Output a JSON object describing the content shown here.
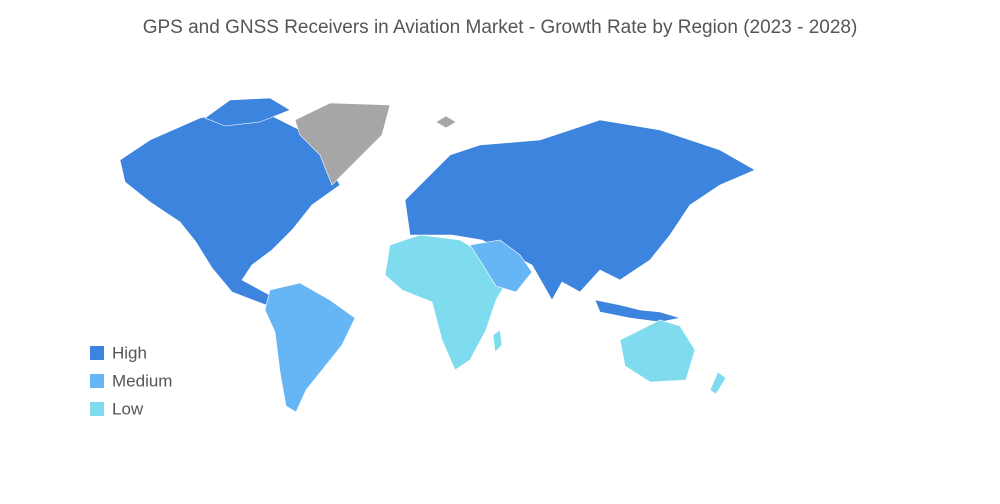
{
  "title": "GPS and GNSS Receivers in Aviation Market - Growth Rate by Region (2023 - 2028)",
  "legend": [
    {
      "label": "High",
      "color": "#3c84dd"
    },
    {
      "label": "Medium",
      "color": "#66b6f6"
    },
    {
      "label": "Low",
      "color": "#7edcee"
    }
  ]
}
